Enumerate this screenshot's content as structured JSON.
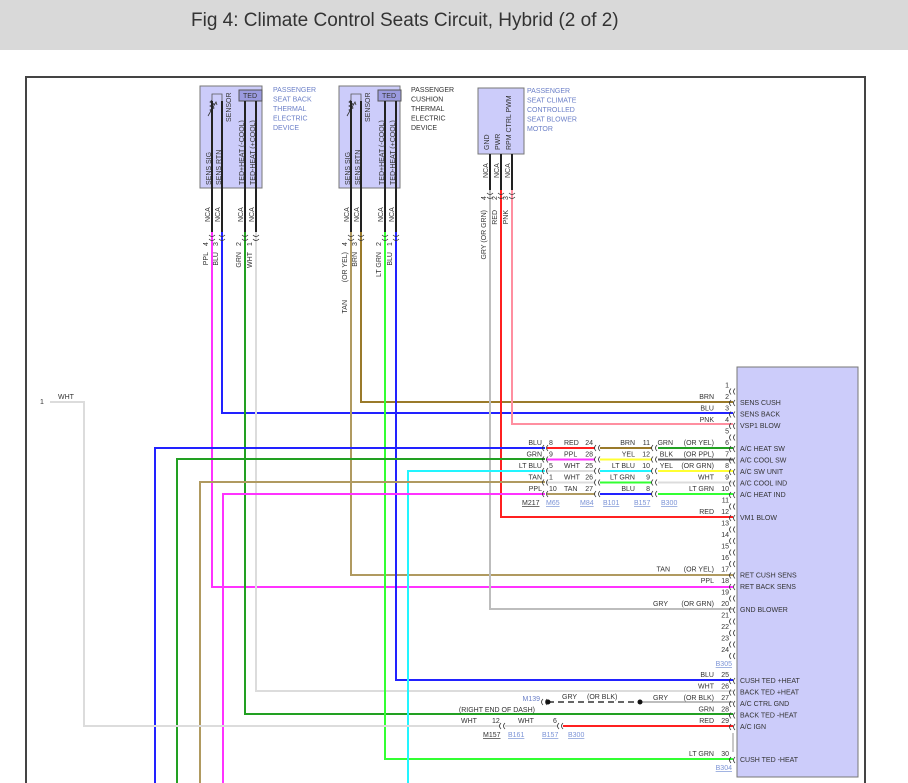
{
  "title": "Fig 4: Climate Control Seats Circuit, Hybrid (2 of 2)",
  "colors": {
    "PPL": "#ff33ff",
    "BLU": "#2222ff",
    "GRN": "#22a022",
    "LTGRN": "#33ff33",
    "WHT": "#dcdcdc",
    "TAN": "#b09a60",
    "BRN": "#9a7a2a",
    "GRY": "#bdbdbd",
    "RED": "#ff2020",
    "PNK": "#ff8fa0",
    "LTBLU": "#22f5ff",
    "YEL": "#ffff33",
    "BLK": "#555555",
    "component_fill": "#ccccfa",
    "module_fill": "#ccccfa"
  },
  "components": [
    {
      "name_lines": [
        "PASSENGER",
        "SEAT BACK",
        "THERMAL",
        "ELECTRIC",
        "DEVICE"
      ],
      "sensor_label": "SENSOR",
      "ted_label": "TED",
      "pins": [
        {
          "label": "SENS SIG",
          "nca": "NCA",
          "num": "4",
          "wire": "PPL"
        },
        {
          "label": "SENS RTN",
          "nca": "NCA",
          "num": "3",
          "wire": "BLU"
        },
        {
          "label": "TED+HEAT (-COOL)",
          "nca": "NCA",
          "num": "2",
          "wire": "GRN"
        },
        {
          "label": "TED-HEAT (+COOL)",
          "nca": "NCA",
          "num": "1",
          "wire": "WHT"
        }
      ]
    },
    {
      "name_lines": [
        "PASSENGER",
        "CUSHION",
        "THERMAL",
        "ELECTRIC",
        "DEVICE"
      ],
      "sensor_label": "SENSOR",
      "ted_label": "TED",
      "pins": [
        {
          "label": "SENS SIG",
          "nca": "NCA",
          "num": "4",
          "wire": "(OR YEL)",
          "wire2": "TAN"
        },
        {
          "label": "SENS RTN",
          "nca": "NCA",
          "num": "3",
          "wire": "BRN"
        },
        {
          "label": "TED+HEAT (-COOL)",
          "nca": "NCA",
          "num": "2",
          "wire": "LT GRN"
        },
        {
          "label": "TED-HEAT (+COOL)",
          "nca": "NCA",
          "num": "1",
          "wire": "BLU"
        }
      ]
    },
    {
      "name_lines": [
        "PASSENGER",
        "SEAT CLIMATE",
        "CONTROLLED",
        "SEAT BLOWER",
        "MOTOR"
      ],
      "pins": [
        {
          "label": "GND",
          "nca": "NCA",
          "num": "4",
          "wire": "GRY  (OR GRN)"
        },
        {
          "label": "PWR",
          "nca": "NCA",
          "num": "2",
          "wire": "RED"
        },
        {
          "label": "RPM CTRL PWM",
          "nca": "NCA",
          "num": "3",
          "wire": "PNK"
        }
      ]
    }
  ],
  "left_connector": {
    "num": "1",
    "wire": "WHT"
  },
  "module": {
    "pins": [
      {
        "num": "1",
        "label": "",
        "wire": "",
        "alt": ""
      },
      {
        "num": "2",
        "label": "SENS CUSH",
        "wire": "BRN",
        "alt": ""
      },
      {
        "num": "3",
        "label": "SENS BACK",
        "wire": "BLU",
        "alt": ""
      },
      {
        "num": "4",
        "label": "VSP1 BLOW",
        "wire": "PNK",
        "alt": ""
      },
      {
        "num": "5",
        "label": "",
        "wire": "",
        "alt": ""
      },
      {
        "num": "6",
        "label": "A/C HEAT SW",
        "wire": "GRN",
        "alt": "(OR YEL)"
      },
      {
        "num": "7",
        "label": "A/C COOL SW",
        "wire": "BLK",
        "alt": "(OR PPL)"
      },
      {
        "num": "8",
        "label": "A/C SW UNIT",
        "wire": "YEL",
        "alt": "(OR GRN)"
      },
      {
        "num": "9",
        "label": "A/C COOL IND",
        "wire": "WHT",
        "alt": ""
      },
      {
        "num": "10",
        "label": "A/C HEAT IND",
        "wire": "LT GRN",
        "alt": ""
      },
      {
        "num": "11",
        "label": "",
        "wire": "",
        "alt": ""
      },
      {
        "num": "12",
        "label": "VM1 BLOW",
        "wire": "RED",
        "alt": ""
      },
      {
        "num": "13",
        "label": "",
        "wire": "",
        "alt": ""
      },
      {
        "num": "14",
        "label": "",
        "wire": "",
        "alt": ""
      },
      {
        "num": "15",
        "label": "",
        "wire": "",
        "alt": ""
      },
      {
        "num": "16",
        "label": "",
        "wire": "",
        "alt": ""
      },
      {
        "num": "17",
        "label": "RET CUSH SENS",
        "wire": "TAN",
        "alt": "(OR YEL)"
      },
      {
        "num": "18",
        "label": "RET BACK SENS",
        "wire": "PPL",
        "alt": ""
      },
      {
        "num": "19",
        "label": "",
        "wire": "",
        "alt": ""
      },
      {
        "num": "20",
        "label": "GND BLOWER",
        "wire": "GRY",
        "alt": "(OR GRN)"
      },
      {
        "num": "21",
        "label": "",
        "wire": "",
        "alt": ""
      },
      {
        "num": "22",
        "label": "",
        "wire": "",
        "alt": ""
      },
      {
        "num": "23",
        "label": "",
        "wire": "",
        "alt": ""
      },
      {
        "num": "24",
        "label": "",
        "wire": "",
        "alt": ""
      },
      {
        "num": "25",
        "label": "CUSH TED +HEAT",
        "wire": "BLU",
        "alt": ""
      },
      {
        "num": "26",
        "label": "BACK TED +HEAT",
        "wire": "WHT",
        "alt": ""
      },
      {
        "num": "27",
        "label": "A/C CTRL GND",
        "wire": "GRY",
        "alt": "(OR BLK)"
      },
      {
        "num": "28",
        "label": "BACK TED -HEAT",
        "wire": "GRN",
        "alt": ""
      },
      {
        "num": "29",
        "label": "A/C IGN",
        "wire": "RED",
        "alt": ""
      },
      {
        "num": "30",
        "label": "CUSH TED -HEAT",
        "wire": "LT GRN",
        "alt": ""
      }
    ],
    "connector_ids": [
      "B305",
      "B304"
    ]
  },
  "inline_rows": [
    {
      "left": "BLU",
      "n1": "8",
      "mid": "RED",
      "n2": "24",
      "mid2": "BRN",
      "n3": "11"
    },
    {
      "left": "GRN",
      "n1": "9",
      "mid": "PPL",
      "n2": "28",
      "mid2": "YEL",
      "n3": "12"
    },
    {
      "left": "LT BLU",
      "n1": "5",
      "mid": "WHT",
      "n2": "25",
      "mid2": "LT BLU",
      "n3": "10"
    },
    {
      "left": "TAN",
      "n1": "1",
      "mid": "WHT",
      "n2": "26",
      "mid2": "LT GRN",
      "n3": "9"
    },
    {
      "left": "PPL",
      "n1": "10",
      "mid": "TAN",
      "n2": "27",
      "mid2": "BLU",
      "n3": "8"
    }
  ],
  "inline_connectors": [
    "M217",
    "M65",
    "M84",
    "B101",
    "B157",
    "B300"
  ],
  "ground": {
    "connector": "M139",
    "location": "(RIGHT END OF DASH)",
    "wire": "GRY",
    "alt": "(OR BLK)"
  },
  "ign": {
    "left_wire": "WHT",
    "n1": "12",
    "mid_wire": "WHT",
    "n2": "6",
    "connectors": [
      "M157",
      "B161",
      "B157",
      "B300"
    ]
  }
}
